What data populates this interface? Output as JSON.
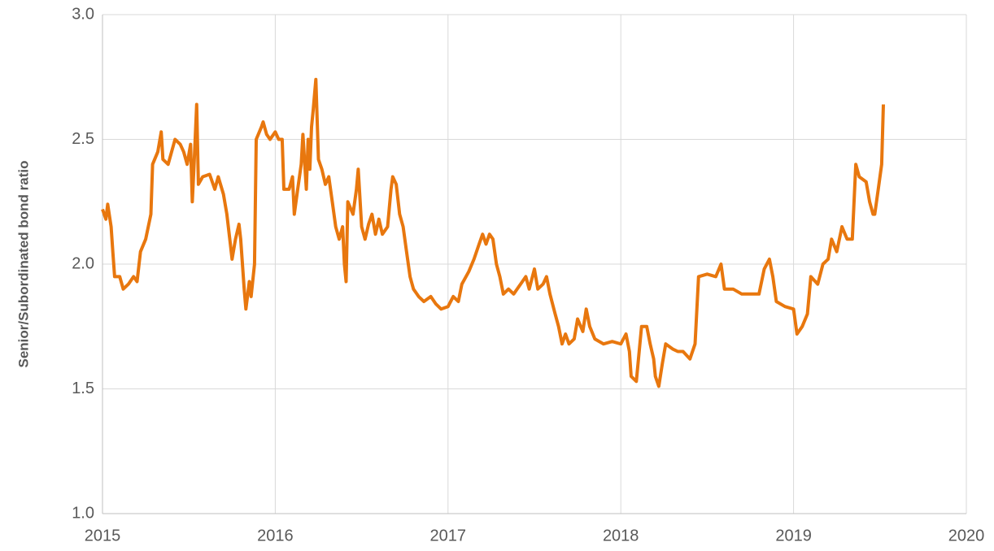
{
  "chart_data": {
    "type": "line",
    "ylabel": "Senior/Subordinated bond ratio",
    "xlim": [
      2015,
      2020
    ],
    "xticks": [
      2015,
      2016,
      2017,
      2018,
      2019,
      2020
    ],
    "ylim": [
      1,
      3
    ],
    "yticks": [
      {
        "value": 1,
        "label": "1.0"
      },
      1.5,
      {
        "value": 2,
        "label": "2.0"
      },
      2.5,
      {
        "value": 3,
        "label": "3.0"
      }
    ],
    "grid": true,
    "x": [
      2015.0,
      2015.02,
      2015.03,
      2015.05,
      2015.06,
      2015.07,
      2015.1,
      2015.12,
      2015.15,
      2015.18,
      2015.2,
      2015.22,
      2015.25,
      2015.28,
      2015.29,
      2015.32,
      2015.34,
      2015.35,
      2015.38,
      2015.42,
      2015.45,
      2015.47,
      2015.49,
      2015.51,
      2015.52,
      2015.53,
      2015.545,
      2015.555,
      2015.58,
      2015.62,
      2015.65,
      2015.67,
      2015.7,
      2015.72,
      2015.74,
      2015.75,
      2015.77,
      2015.79,
      2015.8,
      2015.82,
      2015.83,
      2015.85,
      2015.86,
      2015.88,
      2015.89,
      2015.92,
      2015.93,
      2015.95,
      2015.97,
      2016.0,
      2016.02,
      2016.04,
      2016.05,
      2016.08,
      2016.1,
      2016.11,
      2016.13,
      2016.15,
      2016.16,
      2016.18,
      2016.19,
      2016.2,
      2016.21,
      2016.22,
      2016.235,
      2016.25,
      2016.27,
      2016.29,
      2016.31,
      2016.33,
      2016.35,
      2016.37,
      2016.39,
      2016.4,
      2016.41,
      2016.42,
      2016.45,
      2016.47,
      2016.48,
      2016.5,
      2016.52,
      2016.54,
      2016.56,
      2016.58,
      2016.6,
      2016.62,
      2016.65,
      2016.67,
      2016.68,
      2016.7,
      2016.72,
      2016.74,
      2016.76,
      2016.78,
      2016.8,
      2016.83,
      2016.86,
      2016.9,
      2016.93,
      2016.96,
      2017.0,
      2017.03,
      2017.06,
      2017.08,
      2017.12,
      2017.15,
      2017.18,
      2017.2,
      2017.22,
      2017.24,
      2017.26,
      2017.28,
      2017.3,
      2017.32,
      2017.35,
      2017.38,
      2017.42,
      2017.45,
      2017.47,
      2017.5,
      2017.52,
      2017.55,
      2017.57,
      2017.59,
      2017.62,
      2017.64,
      2017.66,
      2017.68,
      2017.7,
      2017.73,
      2017.75,
      2017.78,
      2017.8,
      2017.82,
      2017.85,
      2017.9,
      2017.95,
      2018.0,
      2018.03,
      2018.05,
      2018.06,
      2018.09,
      2018.12,
      2018.15,
      2018.17,
      2018.19,
      2018.2,
      2018.22,
      2018.24,
      2018.26,
      2018.3,
      2018.33,
      2018.36,
      2018.4,
      2018.43,
      2018.45,
      2018.5,
      2018.55,
      2018.58,
      2018.6,
      2018.65,
      2018.7,
      2018.75,
      2018.8,
      2018.83,
      2018.86,
      2018.88,
      2018.9,
      2018.95,
      2019.0,
      2019.02,
      2019.05,
      2019.08,
      2019.1,
      2019.14,
      2019.17,
      2019.2,
      2019.22,
      2019.25,
      2019.28,
      2019.31,
      2019.34,
      2019.36,
      2019.38,
      2019.42,
      2019.44,
      2019.46,
      2019.47,
      2019.49,
      2019.51,
      2019.52
    ],
    "series": [
      {
        "name": "Senior/Subordinated bond ratio",
        "color": "#e8770e",
        "values": [
          2.22,
          2.18,
          2.24,
          2.15,
          2.05,
          1.95,
          1.95,
          1.9,
          1.92,
          1.95,
          1.93,
          2.05,
          2.1,
          2.2,
          2.4,
          2.45,
          2.53,
          2.42,
          2.4,
          2.5,
          2.48,
          2.45,
          2.4,
          2.48,
          2.25,
          2.4,
          2.64,
          2.32,
          2.35,
          2.36,
          2.3,
          2.35,
          2.28,
          2.2,
          2.08,
          2.02,
          2.1,
          2.16,
          2.1,
          1.9,
          1.82,
          1.93,
          1.87,
          2.0,
          2.5,
          2.55,
          2.57,
          2.52,
          2.5,
          2.53,
          2.5,
          2.5,
          2.3,
          2.3,
          2.35,
          2.2,
          2.3,
          2.4,
          2.52,
          2.3,
          2.5,
          2.38,
          2.55,
          2.62,
          2.74,
          2.42,
          2.38,
          2.32,
          2.35,
          2.25,
          2.15,
          2.1,
          2.15,
          2.0,
          1.93,
          2.25,
          2.2,
          2.3,
          2.38,
          2.15,
          2.1,
          2.16,
          2.2,
          2.12,
          2.18,
          2.12,
          2.15,
          2.3,
          2.35,
          2.32,
          2.2,
          2.15,
          2.05,
          1.95,
          1.9,
          1.87,
          1.85,
          1.87,
          1.84,
          1.82,
          1.83,
          1.87,
          1.85,
          1.92,
          1.97,
          2.02,
          2.08,
          2.12,
          2.08,
          2.12,
          2.1,
          2.0,
          1.95,
          1.88,
          1.9,
          1.88,
          1.92,
          1.95,
          1.9,
          1.98,
          1.9,
          1.92,
          1.95,
          1.88,
          1.8,
          1.75,
          1.68,
          1.72,
          1.68,
          1.7,
          1.78,
          1.73,
          1.82,
          1.75,
          1.7,
          1.68,
          1.69,
          1.68,
          1.72,
          1.65,
          1.55,
          1.53,
          1.75,
          1.75,
          1.68,
          1.62,
          1.55,
          1.51,
          1.6,
          1.68,
          1.66,
          1.65,
          1.65,
          1.62,
          1.68,
          1.95,
          1.96,
          1.95,
          2.0,
          1.9,
          1.9,
          1.88,
          1.88,
          1.88,
          1.98,
          2.02,
          1.95,
          1.85,
          1.83,
          1.82,
          1.72,
          1.75,
          1.8,
          1.95,
          1.92,
          2.0,
          2.02,
          2.1,
          2.05,
          2.15,
          2.1,
          2.1,
          2.4,
          2.35,
          2.33,
          2.25,
          2.2,
          2.2,
          2.3,
          2.4,
          2.64
        ]
      }
    ]
  }
}
